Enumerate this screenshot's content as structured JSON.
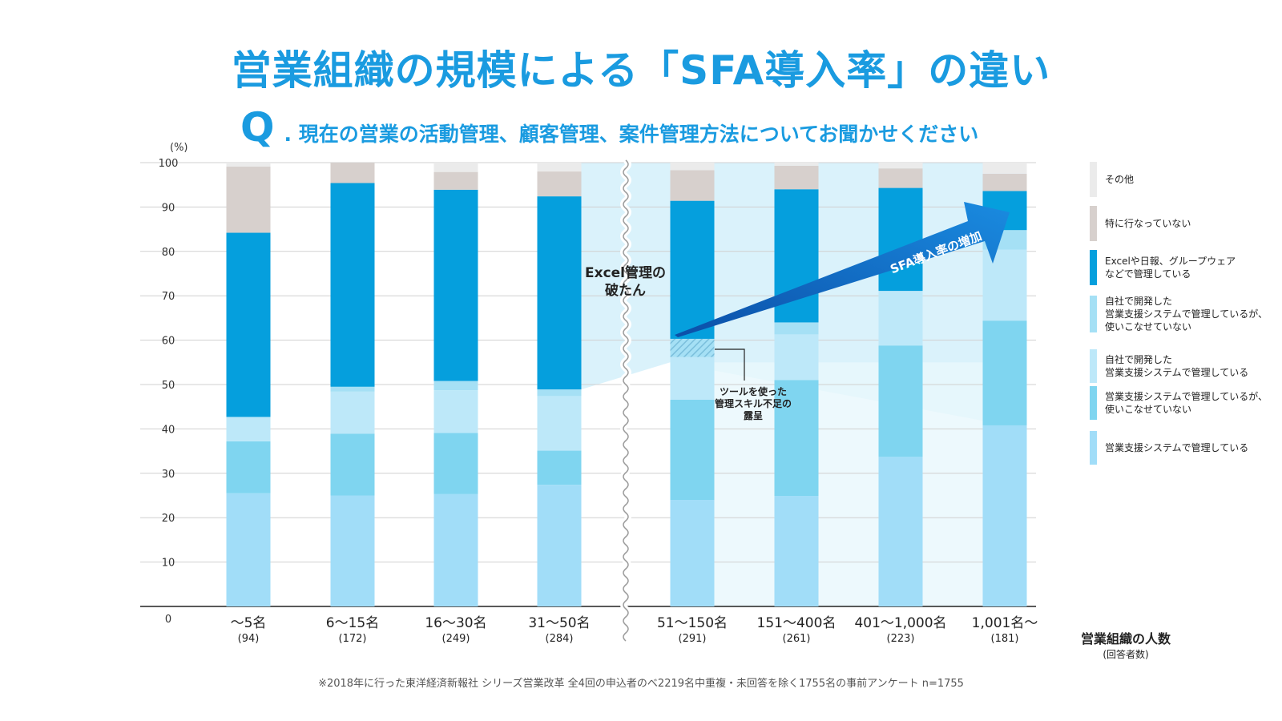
{
  "title": "営業組織の規模による「SFA導入率」の違い",
  "question": {
    "mark": "Q",
    "text": ". 現在の営業の活動管理、顧客管理、案件管理方法についてお聞かせください"
  },
  "unit_label": "(%)",
  "x_axis": {
    "title": "営業組織の人数",
    "subtitle": "(回答者数)"
  },
  "annotations": {
    "excel": "Excel管理の\n破たん",
    "tool_skill": "ツールを使った\n管理スキル不足の\n露呈",
    "arrow": "SFA導入率の増加"
  },
  "footnote": "※2018年に行った東洋経済新報社 シリーズ営業改革 全4回の申込者のべ2219名中重複・未回答を除く1755名の事前アンケート n=1755",
  "colors": {
    "sfa_managed": "#a1ddf8",
    "sfa_unused": "#7fd5f0",
    "own_managed": "#bde8f9",
    "own_unused": "#a5e0f5",
    "excel": "#059fdd",
    "nothing": "#d7d0cd",
    "other": "#ebebeb",
    "grid": "#d0d0d0",
    "axis": "#222222",
    "shade": "#cdeef9",
    "arrow": "#1565c0"
  },
  "chart_data": {
    "type": "bar",
    "stacked": true,
    "title": "営業組織の規模による「SFA導入率」の違い",
    "xlabel": "営業組織の人数",
    "ylabel": "(%)",
    "ylim": [
      0,
      100
    ],
    "yticks": [
      0,
      10,
      20,
      30,
      40,
      50,
      60,
      70,
      80,
      90,
      100
    ],
    "categories": [
      "〜5名",
      "6〜15名",
      "16〜30名",
      "31〜50名",
      "51〜150名",
      "151〜400名",
      "401〜1,000名",
      "1,001名〜"
    ],
    "respondents": [
      "(94)",
      "(172)",
      "(249)",
      "(284)",
      "(291)",
      "(261)",
      "(223)",
      "(181)"
    ],
    "series": [
      {
        "name": "営業支援システムで管理している",
        "color_key": "sfa_managed",
        "values": [
          25.5,
          25,
          25.3,
          27.4,
          24,
          24.9,
          33.7,
          40.8
        ]
      },
      {
        "name": "営業支援システムで管理しているが、使いこなせていない",
        "color_key": "sfa_unused",
        "values": [
          11.7,
          13.9,
          13.8,
          7.7,
          22.6,
          26.1,
          25.1,
          23.6
        ]
      },
      {
        "name": "自社で開発した営業支援システムで管理している",
        "color_key": "own_managed",
        "values": [
          5.5,
          9.5,
          9.6,
          12.3,
          9.6,
          10.3,
          12.3,
          16.0
        ]
      },
      {
        "name": "自社で開発した営業支援システムで管理しているが、使いこなせていない",
        "color_key": "own_unused",
        "values": [
          0,
          1.1,
          2.1,
          1.5,
          4.1,
          2.7,
          0,
          4.4
        ]
      },
      {
        "name": "Excelや日報、グループウェアなどで管理している",
        "color_key": "excel",
        "values": [
          41.5,
          45.9,
          43.1,
          43.5,
          31.1,
          30.0,
          23.2,
          8.8
        ]
      },
      {
        "name": "特に行なっていない",
        "color_key": "nothing",
        "values": [
          14.9,
          4.6,
          4.0,
          5.6,
          6.9,
          5.3,
          4.4,
          3.9
        ]
      },
      {
        "name": "その他",
        "color_key": "other",
        "values": [
          0.9,
          0,
          2.1,
          2.0,
          1.7,
          0.7,
          1.3,
          2.5
        ]
      }
    ],
    "legend_position": "right"
  },
  "legend": [
    {
      "label": "その他",
      "color_key": "other"
    },
    {
      "label": "特に行なっていない",
      "color_key": "nothing"
    },
    {
      "label": "Excelや日報、グループウェア\nなどで管理している",
      "color_key": "excel"
    },
    {
      "label": "自社で開発した\n営業支援システムで管理しているが、\n使いこなせていない",
      "color_key": "own_unused"
    },
    {
      "label": "自社で開発した\n営業支援システムで管理している",
      "color_key": "own_managed"
    },
    {
      "label": "営業支援システムで管理しているが、\n使いこなせていない",
      "color_key": "sfa_unused"
    },
    {
      "label": "営業支援システムで管理している",
      "color_key": "sfa_managed"
    }
  ]
}
